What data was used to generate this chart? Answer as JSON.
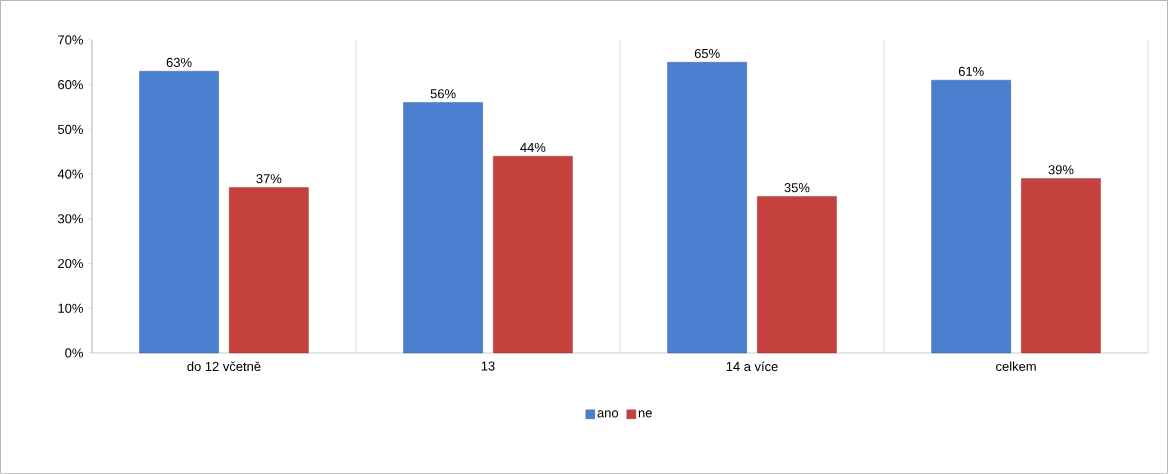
{
  "chart_data": {
    "type": "bar",
    "categories": [
      "do 12 včetně",
      "13",
      "14 a více",
      "celkem"
    ],
    "series": [
      {
        "name": "ano",
        "color": "#4a7fd0",
        "values": [
          63,
          56,
          65,
          61
        ],
        "value_labels": [
          "63%",
          "56%",
          "65%",
          "61%"
        ]
      },
      {
        "name": "ne",
        "color": "#c4413e",
        "values": [
          37,
          44,
          35,
          39
        ],
        "value_labels": [
          "37%",
          "44%",
          "35%",
          "39%"
        ]
      }
    ],
    "ylim": [
      0,
      70
    ],
    "yticks": [
      {
        "value": 0,
        "label": "0%"
      },
      {
        "value": 10,
        "label": "10%"
      },
      {
        "value": 20,
        "label": "20%"
      },
      {
        "value": 30,
        "label": "30%"
      },
      {
        "value": 40,
        "label": "40%"
      },
      {
        "value": 50,
        "label": "50%"
      },
      {
        "value": 60,
        "label": "60%"
      },
      {
        "value": 70,
        "label": "70%"
      }
    ],
    "grid": "x",
    "legend": "bottom"
  }
}
